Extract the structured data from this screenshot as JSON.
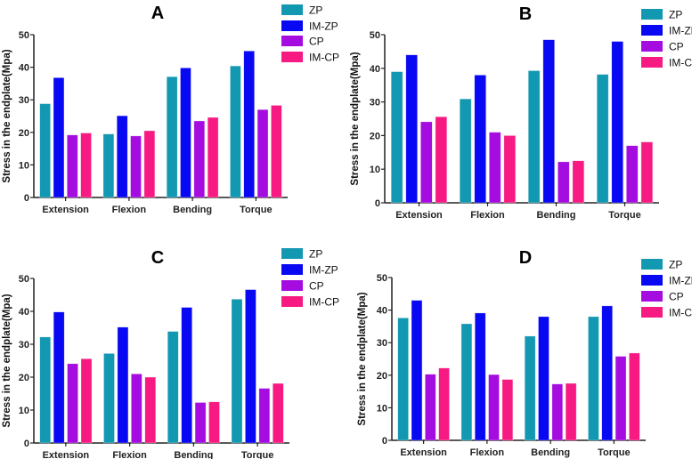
{
  "chart_data": [
    {
      "type": "bar",
      "title": "A",
      "xlabel": "",
      "ylabel": "Stress in the endplate(Mpa)",
      "ylim": [
        0,
        50
      ],
      "yticks": [
        0,
        10,
        20,
        30,
        40,
        50
      ],
      "grid": false,
      "legend": "top-right",
      "categories": [
        "Extension",
        "Flexion",
        "Bending",
        "Torque"
      ],
      "series": [
        {
          "name": "ZP",
          "values": [
            28.8,
            19.5,
            37.1,
            40.4
          ]
        },
        {
          "name": "IM-ZP",
          "values": [
            36.8,
            25.1,
            39.8,
            45.0
          ]
        },
        {
          "name": "CP",
          "values": [
            19.2,
            18.9,
            23.5,
            27.0
          ]
        },
        {
          "name": "IM-CP",
          "values": [
            19.8,
            20.5,
            24.6,
            28.3
          ]
        }
      ]
    },
    {
      "type": "bar",
      "title": "B",
      "xlabel": "",
      "ylabel": "Stress in the endplate(Mpa)",
      "ylim": [
        0,
        50
      ],
      "yticks": [
        0,
        10,
        20,
        30,
        40,
        50
      ],
      "grid": false,
      "legend": "top-right",
      "categories": [
        "Extension",
        "Flexion",
        "Bending",
        "Torque"
      ],
      "series": [
        {
          "name": "ZP",
          "values": [
            39.0,
            30.9,
            39.3,
            38.2
          ]
        },
        {
          "name": "IM-ZP",
          "values": [
            44.0,
            38.0,
            48.5,
            48.0
          ]
        },
        {
          "name": "CP",
          "values": [
            24.1,
            21.0,
            12.2,
            17.0
          ]
        },
        {
          "name": "IM-CP",
          "values": [
            25.6,
            20.0,
            12.5,
            18.1
          ]
        }
      ]
    },
    {
      "type": "bar",
      "title": "C",
      "xlabel": "",
      "ylabel": "Stress in the endplate(Mpa)",
      "ylim": [
        0,
        50
      ],
      "yticks": [
        0,
        10,
        20,
        30,
        40,
        50
      ],
      "grid": false,
      "legend": "top-right",
      "categories": [
        "Extension",
        "Flexion",
        "Bending",
        "Torque"
      ],
      "series": [
        {
          "name": "ZP",
          "values": [
            32.2,
            27.2,
            33.9,
            43.7
          ]
        },
        {
          "name": "IM-ZP",
          "values": [
            39.8,
            35.2,
            41.2,
            46.6
          ]
        },
        {
          "name": "CP",
          "values": [
            24.1,
            21.0,
            12.3,
            16.6
          ]
        },
        {
          "name": "IM-CP",
          "values": [
            25.6,
            20.0,
            12.5,
            18.1
          ]
        }
      ]
    },
    {
      "type": "bar",
      "title": "D",
      "xlabel": "",
      "ylabel": "Stress in the endplate(Mpa)",
      "ylim": [
        0,
        50
      ],
      "yticks": [
        0,
        10,
        20,
        30,
        40,
        50
      ],
      "grid": false,
      "legend": "top-right",
      "categories": [
        "Extension",
        "Flexion",
        "Bending",
        "Torque"
      ],
      "series": [
        {
          "name": "ZP",
          "values": [
            37.6,
            35.8,
            32.0,
            38.0
          ]
        },
        {
          "name": "IM-ZP",
          "values": [
            43.0,
            39.1,
            38.0,
            41.3
          ]
        },
        {
          "name": "CP",
          "values": [
            20.3,
            20.2,
            17.3,
            25.8
          ]
        },
        {
          "name": "IM-CP",
          "values": [
            22.2,
            18.7,
            17.5,
            26.8
          ]
        }
      ]
    }
  ],
  "colors": {
    "ZP": "#1398b2",
    "IM-ZP": "#0808f2",
    "CP": "#a50ce0",
    "IM-CP": "#f61a82"
  }
}
